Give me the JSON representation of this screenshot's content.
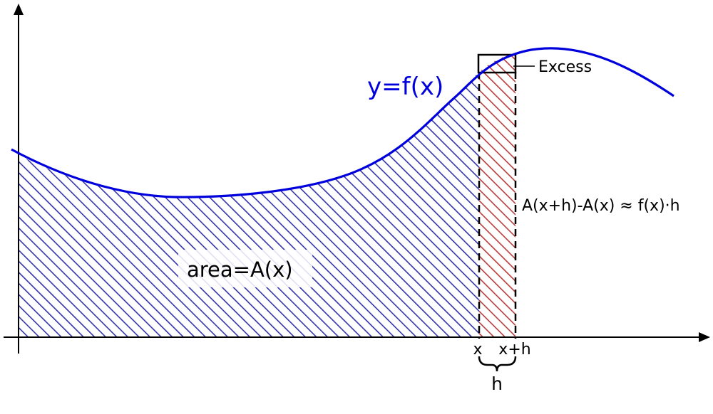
{
  "curve_label": "y=f(x)",
  "area_label": "area=A(x)",
  "excess_label": "Excess",
  "difference_label": "A(x+h)-A(x) ≈ f(x)·h",
  "tick_x_label": "x",
  "tick_xh_label": "x+h",
  "width_label": "h",
  "colors": {
    "curve": "#0000dd",
    "area_hatch": "#3434a8",
    "strip_hatch": "#b83c3c",
    "axis": "#000000",
    "area_label_bg": "#ffffff"
  }
}
